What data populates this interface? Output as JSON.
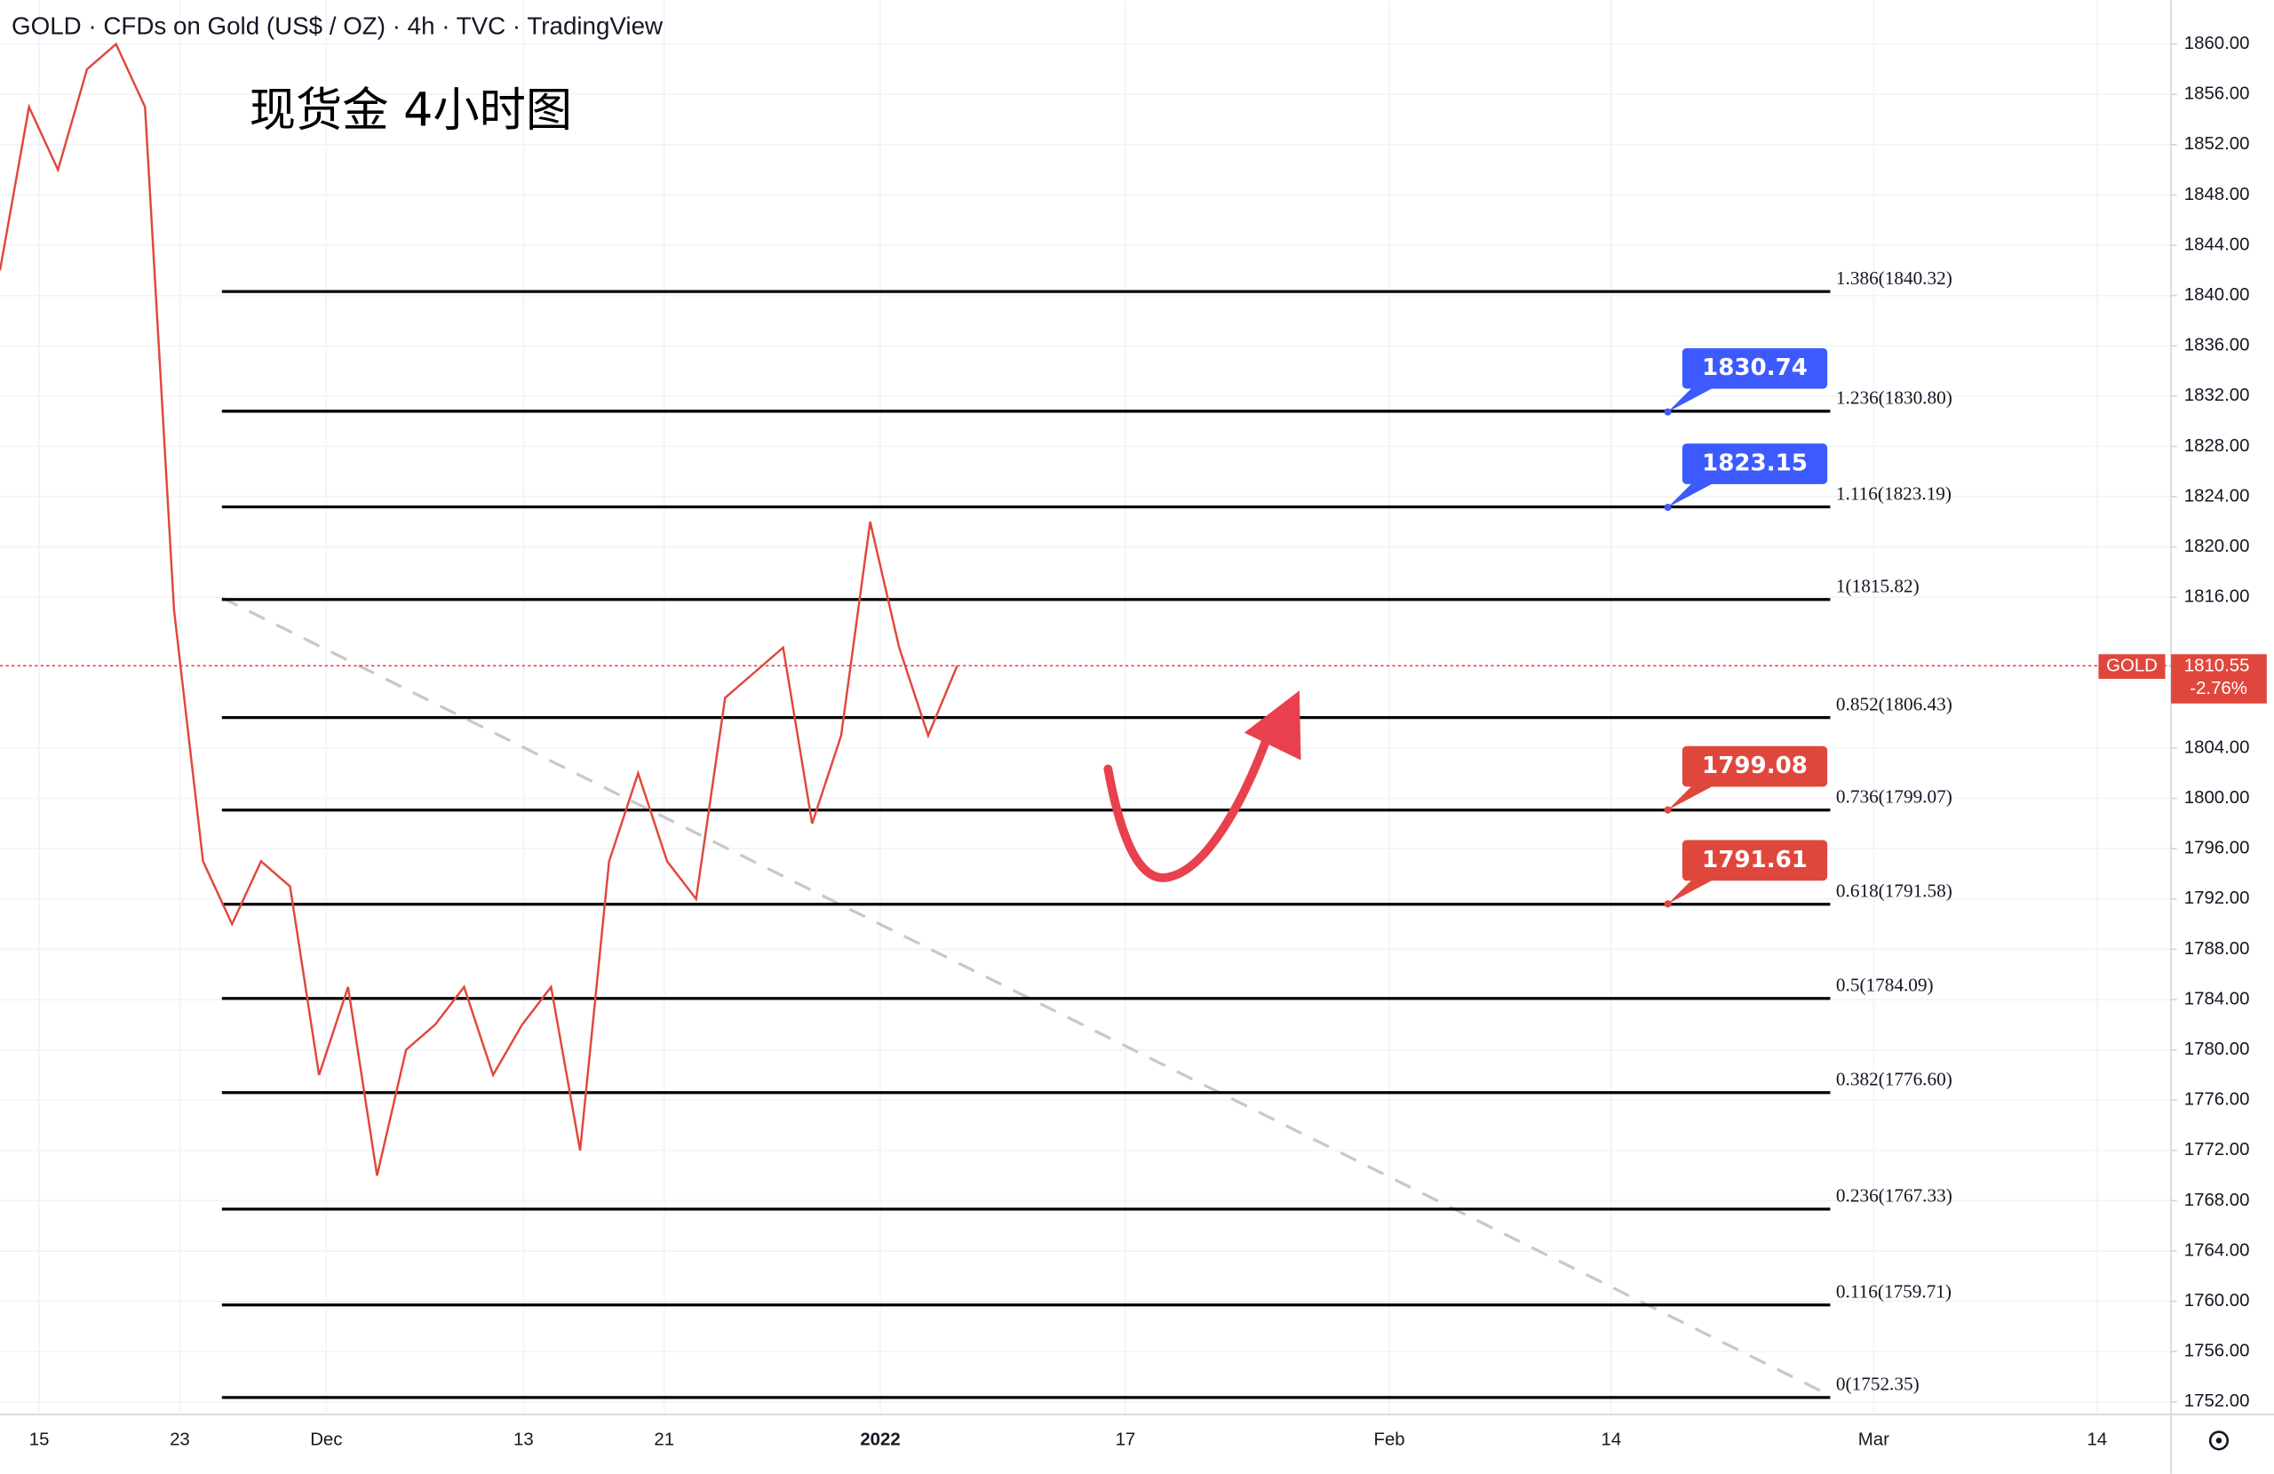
{
  "chart_data": {
    "type": "line",
    "title": "GOLD · CFDs on Gold (US$ / OZ) · 4h · TVC · TradingView",
    "annotation": "现货金 4小时图",
    "series": [
      {
        "name": "GOLD",
        "color": "#e0473c",
        "values": [
          1842,
          1855,
          1850,
          1858,
          1860,
          1855,
          1815,
          1795,
          1790,
          1795,
          1793,
          1778,
          1785,
          1770,
          1780,
          1782,
          1785,
          1778,
          1782,
          1785,
          1772,
          1795,
          1802,
          1795,
          1792,
          1808,
          1810,
          1812,
          1798,
          1805,
          1822,
          1812,
          1805,
          1810.55
        ]
      }
    ],
    "last_price": 1810.55,
    "change_label": "-2.76%",
    "price_tag_color": "#e0473c",
    "x_labels": [
      "15",
      "23",
      "Dec",
      "13",
      "21",
      "2022",
      "17",
      "Feb",
      "14",
      "Mar",
      "14"
    ],
    "ylim": [
      1751,
      1863.5
    ],
    "yticks": [
      {
        "value": 1752,
        "label": "1752.00"
      },
      {
        "value": 1756,
        "label": "1756.00"
      },
      {
        "value": 1760,
        "label": "1760.00"
      },
      {
        "value": 1764,
        "label": "1764.00"
      },
      {
        "value": 1768,
        "label": "1768.00"
      },
      {
        "value": 1772,
        "label": "1772.00"
      },
      {
        "value": 1776,
        "label": "1776.00"
      },
      {
        "value": 1780,
        "label": "1780.00"
      },
      {
        "value": 1784,
        "label": "1784.00"
      },
      {
        "value": 1788,
        "label": "1788.00"
      },
      {
        "value": 1792,
        "label": "1792.00"
      },
      {
        "value": 1796,
        "label": "1796.00"
      },
      {
        "value": 1800,
        "label": "1800.00"
      },
      {
        "value": 1804,
        "label": "1804.00"
      },
      {
        "value": 1816,
        "label": "1816.00"
      },
      {
        "value": 1820,
        "label": "1820.00"
      },
      {
        "value": 1824,
        "label": "1824.00"
      },
      {
        "value": 1828,
        "label": "1828.00"
      },
      {
        "value": 1832,
        "label": "1832.00"
      },
      {
        "value": 1836,
        "label": "1836.00"
      },
      {
        "value": 1840,
        "label": "1840.00"
      },
      {
        "value": 1844,
        "label": "1844.00"
      },
      {
        "value": 1848,
        "label": "1848.00"
      },
      {
        "value": 1852,
        "label": "1852.00"
      },
      {
        "value": 1856,
        "label": "1856.00"
      },
      {
        "value": 1860,
        "label": "1860.00"
      }
    ],
    "grid": true,
    "fib_levels": [
      {
        "value": 1840.32,
        "label": "1.386(1840.32)"
      },
      {
        "value": 1830.8,
        "label": "1.236(1830.80)"
      },
      {
        "value": 1823.19,
        "label": "1.116(1823.19)"
      },
      {
        "value": 1815.82,
        "label": "1(1815.82)"
      },
      {
        "value": 1806.43,
        "label": "0.852(1806.43)"
      },
      {
        "value": 1799.07,
        "label": "0.736(1799.07)"
      },
      {
        "value": 1791.58,
        "label": "0.618(1791.58)"
      },
      {
        "value": 1784.09,
        "label": "0.5(1784.09)"
      },
      {
        "value": 1776.6,
        "label": "0.382(1776.60)"
      },
      {
        "value": 1767.33,
        "label": "0.236(1767.33)"
      },
      {
        "value": 1759.71,
        "label": "0.116(1759.71)"
      },
      {
        "value": 1752.35,
        "label": "0(1752.35)"
      }
    ],
    "callouts": [
      {
        "value": 1830.74,
        "label": "1830.74",
        "color": "#3d5afe"
      },
      {
        "value": 1823.15,
        "label": "1823.15",
        "color": "#3d5afe"
      },
      {
        "value": 1799.08,
        "label": "1799.08",
        "color": "#e0473c"
      },
      {
        "value": 1791.61,
        "label": "1791.61",
        "color": "#e0473c"
      }
    ]
  }
}
